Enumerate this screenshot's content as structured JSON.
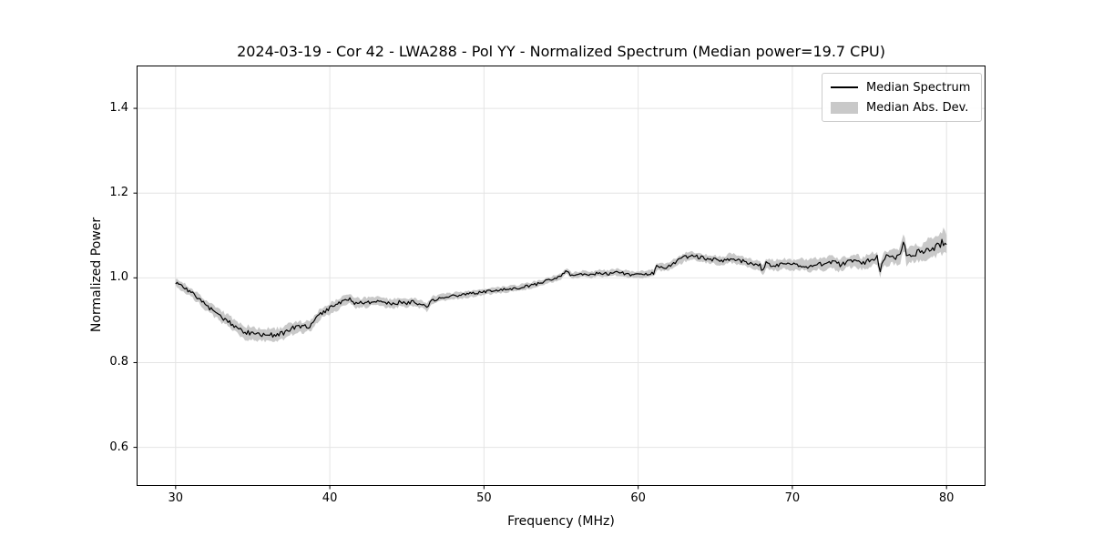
{
  "colors": {
    "line": "#000000",
    "band": "#c9c9c9",
    "grid": "#e4e4e4",
    "spine": "#000000",
    "background": "#ffffff"
  },
  "legend": {
    "position": "upper right",
    "entries": [
      {
        "label": "Median Spectrum",
        "type": "line",
        "color": "#000000"
      },
      {
        "label": "Median Abs. Dev.",
        "type": "patch",
        "color": "#c9c9c9"
      }
    ]
  },
  "chart_data": {
    "type": "line",
    "title": "2024-03-19 - Cor 42 - LWA288 - Pol YY - Normalized Spectrum (Median power=19.7 CPU)",
    "xlabel": "Frequency (MHz)",
    "ylabel": "Normalized Power",
    "xlim": [
      27.5,
      82.5
    ],
    "ylim": [
      0.51,
      1.5
    ],
    "grid": true,
    "legend_position": "upper right",
    "xticks": [
      30,
      40,
      50,
      60,
      70,
      80
    ],
    "xtick_labels": [
      "30",
      "40",
      "50",
      "60",
      "70",
      "80"
    ],
    "yticks": [
      0.6,
      0.8,
      1.0,
      1.2,
      1.4
    ],
    "ytick_labels": [
      "0.6",
      "0.8",
      "1.0",
      "1.2",
      "1.4"
    ],
    "x": [
      30.0,
      30.5,
      31.0,
      31.5,
      32.0,
      32.5,
      33.0,
      33.5,
      34.0,
      34.5,
      35.0,
      35.5,
      36.0,
      36.5,
      37.0,
      37.3,
      37.5,
      38.0,
      38.5,
      38.8,
      39.0,
      39.5,
      40.0,
      40.5,
      41.0,
      41.3,
      41.6,
      42.0,
      42.5,
      43.0,
      43.5,
      44.0,
      44.5,
      45.0,
      45.5,
      46.0,
      46.3,
      46.6,
      47.0,
      47.5,
      48.0,
      48.5,
      49.0,
      49.5,
      50.0,
      50.5,
      51.0,
      51.5,
      52.0,
      52.5,
      53.0,
      53.5,
      54.0,
      54.5,
      55.0,
      55.35,
      55.7,
      56.0,
      56.5,
      57.0,
      57.5,
      58.0,
      58.5,
      59.0,
      59.5,
      60.0,
      60.5,
      61.0,
      61.2,
      61.7,
      62.0,
      62.5,
      63.0,
      63.5,
      64.0,
      64.5,
      65.0,
      65.5,
      66.0,
      66.5,
      67.0,
      67.5,
      67.9,
      68.1,
      68.3,
      68.7,
      69.0,
      69.5,
      70.0,
      70.5,
      71.0,
      71.5,
      72.0,
      72.5,
      73.0,
      73.5,
      74.0,
      74.5,
      75.0,
      75.5,
      75.65,
      75.9,
      76.2,
      76.6,
      77.0,
      77.25,
      77.4,
      77.7,
      78.0,
      78.4,
      78.8,
      79.2,
      79.6,
      79.9,
      80.0
    ],
    "series": [
      {
        "name": "Median Spectrum",
        "type": "line",
        "color": "#000000",
        "values": [
          0.99,
          0.978,
          0.965,
          0.952,
          0.933,
          0.921,
          0.908,
          0.895,
          0.881,
          0.872,
          0.868,
          0.865,
          0.864,
          0.865,
          0.868,
          0.877,
          0.88,
          0.883,
          0.885,
          0.889,
          0.9,
          0.918,
          0.928,
          0.937,
          0.947,
          0.951,
          0.941,
          0.94,
          0.943,
          0.946,
          0.941,
          0.939,
          0.942,
          0.941,
          0.944,
          0.936,
          0.929,
          0.947,
          0.951,
          0.954,
          0.957,
          0.959,
          0.962,
          0.964,
          0.967,
          0.969,
          0.971,
          0.973,
          0.975,
          0.978,
          0.982,
          0.986,
          0.992,
          0.998,
          1.004,
          1.016,
          1.005,
          1.007,
          1.01,
          1.007,
          1.012,
          1.009,
          1.013,
          1.011,
          1.007,
          1.009,
          1.008,
          1.011,
          1.027,
          1.024,
          1.028,
          1.038,
          1.048,
          1.052,
          1.048,
          1.045,
          1.043,
          1.039,
          1.047,
          1.041,
          1.037,
          1.033,
          1.03,
          1.015,
          1.035,
          1.031,
          1.03,
          1.034,
          1.03,
          1.032,
          1.028,
          1.033,
          1.031,
          1.038,
          1.031,
          1.036,
          1.042,
          1.034,
          1.04,
          1.048,
          1.014,
          1.046,
          1.048,
          1.05,
          1.053,
          1.09,
          1.052,
          1.055,
          1.06,
          1.057,
          1.067,
          1.072,
          1.079,
          1.089,
          1.082
        ]
      },
      {
        "name": "Median Abs. Dev.",
        "type": "band_halfwidth",
        "color": "#c9c9c9",
        "values": [
          0.01,
          0.01,
          0.01,
          0.011,
          0.011,
          0.012,
          0.013,
          0.014,
          0.014,
          0.015,
          0.015,
          0.015,
          0.015,
          0.015,
          0.015,
          0.014,
          0.014,
          0.013,
          0.013,
          0.013,
          0.012,
          0.012,
          0.012,
          0.012,
          0.011,
          0.011,
          0.011,
          0.011,
          0.011,
          0.01,
          0.01,
          0.01,
          0.01,
          0.01,
          0.01,
          0.009,
          0.009,
          0.009,
          0.008,
          0.008,
          0.008,
          0.008,
          0.008,
          0.007,
          0.007,
          0.007,
          0.007,
          0.007,
          0.007,
          0.007,
          0.007,
          0.007,
          0.007,
          0.007,
          0.007,
          0.007,
          0.007,
          0.007,
          0.007,
          0.007,
          0.007,
          0.008,
          0.008,
          0.008,
          0.008,
          0.008,
          0.008,
          0.008,
          0.009,
          0.009,
          0.009,
          0.01,
          0.01,
          0.01,
          0.01,
          0.01,
          0.01,
          0.01,
          0.011,
          0.011,
          0.011,
          0.011,
          0.011,
          0.012,
          0.012,
          0.012,
          0.012,
          0.012,
          0.012,
          0.013,
          0.013,
          0.013,
          0.013,
          0.013,
          0.014,
          0.014,
          0.014,
          0.015,
          0.015,
          0.016,
          0.016,
          0.016,
          0.017,
          0.017,
          0.018,
          0.018,
          0.019,
          0.019,
          0.02,
          0.021,
          0.022,
          0.023,
          0.024,
          0.025,
          0.025
        ]
      }
    ]
  }
}
